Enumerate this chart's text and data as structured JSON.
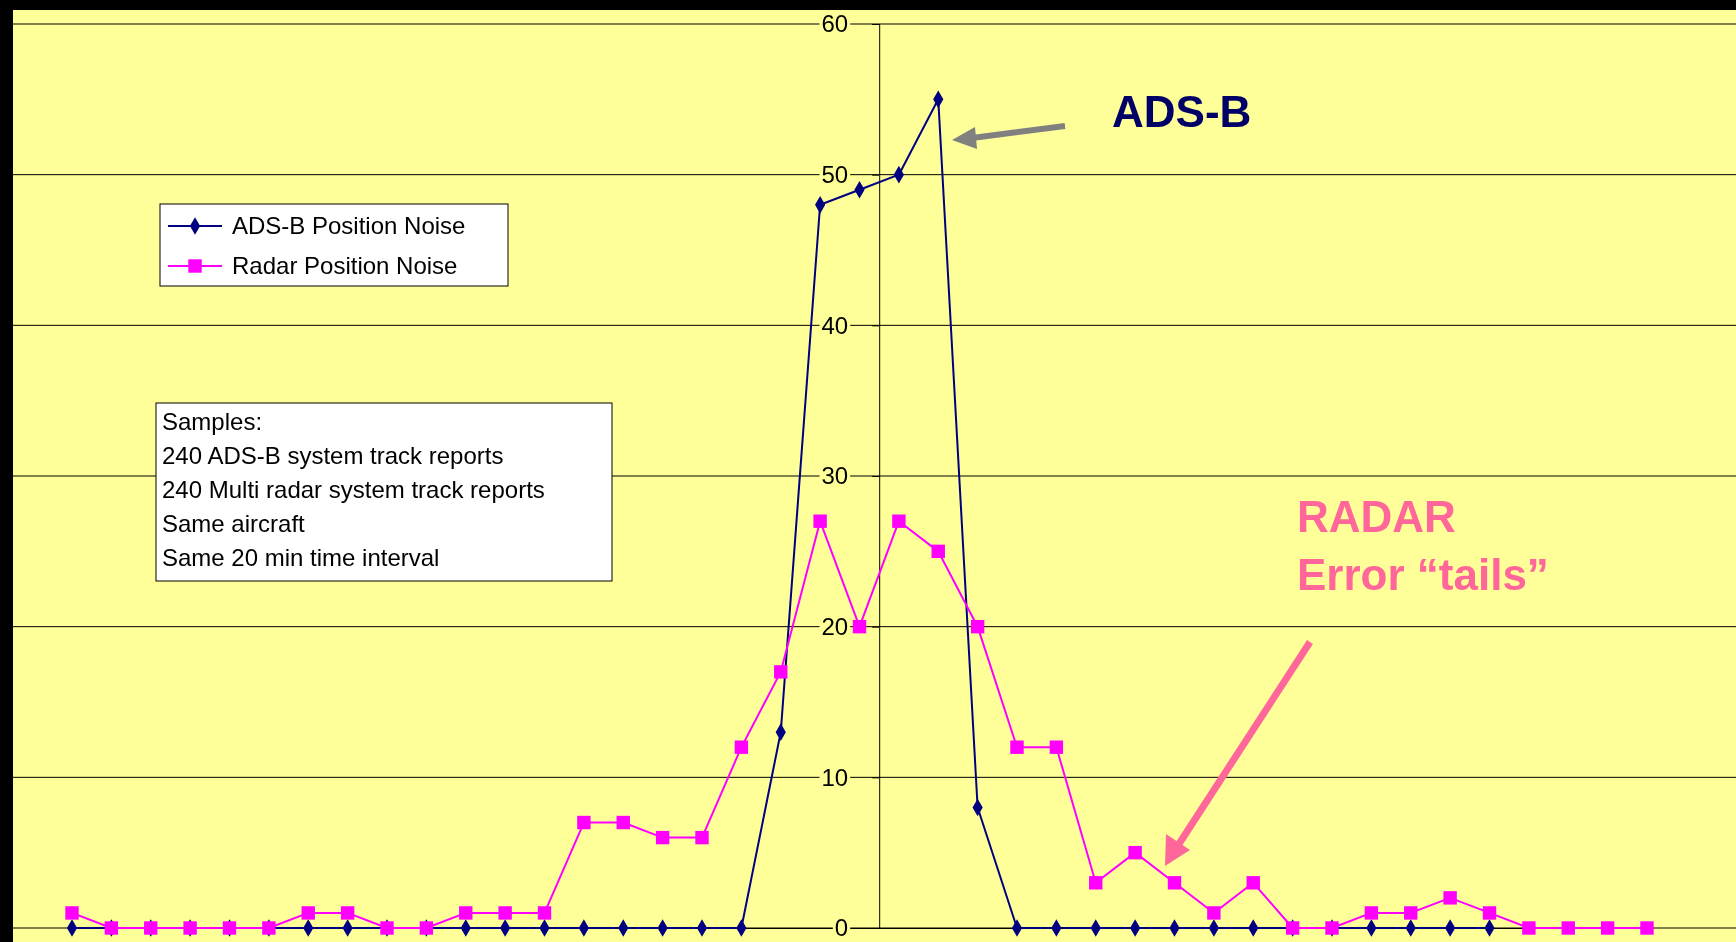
{
  "chart_data": {
    "type": "line",
    "categories": [
      null,
      null,
      null,
      null,
      null,
      null,
      null,
      null,
      null,
      null,
      null,
      null,
      null,
      null,
      null,
      null,
      null,
      null,
      null,
      null,
      null,
      null,
      null,
      null,
      null,
      null,
      null,
      null,
      null,
      null,
      null,
      null,
      null,
      null,
      null,
      null,
      null,
      null,
      null,
      null,
      null
    ],
    "series": [
      {
        "name": "ADS-B Position Noise",
        "color": "#000080",
        "marker": "diamond",
        "values": [
          0,
          0,
          0,
          0,
          0,
          0,
          0,
          0,
          0,
          0,
          0,
          0,
          0,
          0,
          0,
          0,
          0,
          0,
          13,
          48,
          49,
          50,
          55,
          8,
          0,
          0,
          0,
          0,
          0,
          0,
          0,
          0,
          0,
          0,
          0,
          0,
          0,
          null,
          null,
          null,
          null
        ]
      },
      {
        "name": "Radar Position Noise",
        "color": "#ff00ff",
        "marker": "square",
        "values": [
          1,
          0,
          0,
          0,
          0,
          0,
          1,
          1,
          0,
          0,
          1,
          1,
          1,
          7,
          7,
          6,
          6,
          12,
          17,
          27,
          20,
          27,
          25,
          20,
          12,
          12,
          3,
          5,
          3,
          1,
          3,
          0,
          0,
          1,
          1,
          2,
          1,
          0,
          0,
          0,
          0
        ]
      }
    ],
    "ylim": [
      0,
      60
    ],
    "yticks": [
      0,
      10,
      20,
      30,
      40,
      50,
      60
    ],
    "grid": "y",
    "legend": "top left",
    "tick_labels": "y",
    "annotations": [
      "ADS-B",
      "RADAR\nError “tails”",
      "Samples:\n240 ADS-B system track reports\n240 Multi radar system track reports\nSame aircraft\nSame 20 min time interval"
    ]
  }
}
